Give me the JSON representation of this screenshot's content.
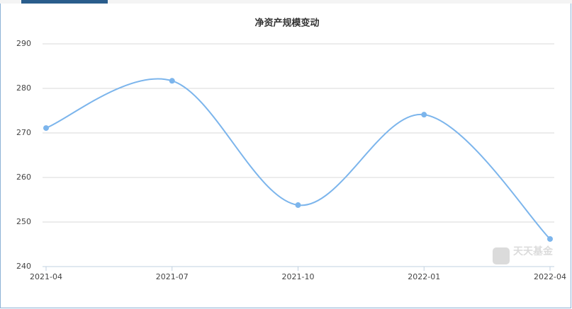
{
  "chart_data": {
    "type": "line",
    "title": "净资产规模变动",
    "categories": [
      "2021-04",
      "2021-07",
      "2021-10",
      "2022-01",
      "2022-04"
    ],
    "values": [
      271.1,
      281.7,
      253.8,
      274.1,
      246.2
    ],
    "color": "#7cb5ec",
    "ylim": [
      240,
      290
    ],
    "yticks": [
      240,
      250,
      260,
      270,
      280,
      290
    ],
    "grid": true,
    "watermark": "天天基金"
  }
}
